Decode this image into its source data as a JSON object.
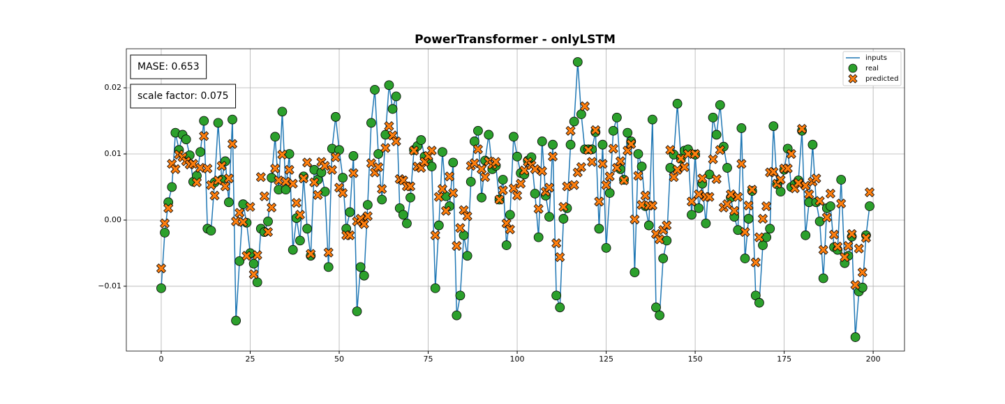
{
  "chart_data": {
    "type": "line-scatter",
    "title": "PowerTransformer - onlyLSTM",
    "annotations": [
      "MASE: 0.653",
      "scale factor: 0.075"
    ],
    "xlim": [
      -9.8,
      208.8
    ],
    "xticks": [
      0,
      25,
      50,
      75,
      100,
      125,
      150,
      175,
      200
    ],
    "ylim": [
      -0.0198,
      0.0259
    ],
    "yticks": [
      {
        "value": -0.01,
        "label": "−0.01"
      },
      {
        "value": 0,
        "label": "0.00"
      },
      0.01,
      0.02
    ],
    "grid": true,
    "legend": "upper right",
    "x": [
      0,
      1,
      2,
      3,
      4,
      5,
      6,
      7,
      8,
      9,
      10,
      11,
      12,
      13,
      14,
      15,
      16,
      17,
      18,
      19,
      20,
      21,
      22,
      23,
      24,
      25,
      26,
      27,
      28,
      29,
      30,
      31,
      32,
      33,
      34,
      35,
      36,
      37,
      38,
      39,
      40,
      41,
      42,
      43,
      44,
      45,
      46,
      47,
      48,
      49,
      50,
      51,
      52,
      53,
      54,
      55,
      56,
      57,
      58,
      59,
      60,
      61,
      62,
      63,
      64,
      65,
      66,
      67,
      68,
      69,
      70,
      71,
      72,
      73,
      74,
      75,
      76,
      77,
      78,
      79,
      80,
      81,
      82,
      83,
      84,
      85,
      86,
      87,
      88,
      89,
      90,
      91,
      92,
      93,
      94,
      95,
      96,
      97,
      98,
      99,
      100,
      101,
      102,
      103,
      104,
      105,
      106,
      107,
      108,
      109,
      110,
      111,
      112,
      113,
      114,
      115,
      116,
      117,
      118,
      119,
      120,
      121,
      122,
      123,
      124,
      125,
      126,
      127,
      128,
      129,
      130,
      131,
      132,
      133,
      134,
      135,
      136,
      137,
      138,
      139,
      140,
      141,
      142,
      143,
      144,
      145,
      146,
      147,
      148,
      149,
      150,
      151,
      152,
      153,
      154,
      155,
      156,
      157,
      158,
      159,
      160,
      161,
      162,
      163,
      164,
      165,
      166,
      167,
      168,
      169,
      170,
      171,
      172,
      173,
      174,
      175,
      176,
      177,
      178,
      179,
      180,
      181,
      182,
      183,
      184,
      185,
      186,
      187,
      188,
      189,
      190,
      191,
      192,
      193,
      194,
      195,
      196,
      197,
      198,
      199
    ],
    "series": [
      {
        "name": "inputs",
        "color": "#1f77b4",
        "marker": "line",
        "values": [
          -0.0103,
          -0.0019,
          0.0027,
          0.005,
          0.0132,
          0.0106,
          0.0129,
          0.0122,
          0.0098,
          0.0058,
          0.0067,
          0.0103,
          0.015,
          -0.0013,
          -0.0016,
          0.0057,
          0.0147,
          0.0061,
          0.0089,
          0.0027,
          0.0152,
          -0.0152,
          -0.0062,
          0.0024,
          -0.0004,
          -0.005,
          -0.0066,
          -0.0094,
          -0.0013,
          -0.0018,
          -0.0002,
          0.0064,
          0.0126,
          0.0046,
          0.0164,
          0.0046,
          0.01,
          -0.0045,
          0.0003,
          -0.0031,
          0.0066,
          -0.0013,
          -0.0054,
          0.0076,
          0.0061,
          0.0072,
          0.0043,
          -0.0071,
          0.0108,
          0.0156,
          0.0106,
          0.0064,
          -0.0013,
          0.0012,
          0.0097,
          -0.0138,
          -0.0071,
          -0.0084,
          0.0023,
          0.0147,
          0.0197,
          0.01,
          0.0031,
          0.0129,
          0.0204,
          0.0168,
          0.0187,
          0.0018,
          0.0008,
          -0.0005,
          0.0034,
          0.0106,
          0.0112,
          0.0121,
          0.0096,
          0.009,
          0.0081,
          -0.0103,
          -0.0008,
          0.0103,
          0.0036,
          0.0021,
          0.0087,
          -0.0144,
          -0.0114,
          -0.0023,
          -0.0054,
          0.0058,
          0.0119,
          0.0135,
          0.0034,
          0.009,
          0.0129,
          0.0077,
          0.0082,
          0.0031,
          0.0061,
          -0.0038,
          0.0008,
          0.0126,
          0.0096,
          0.0071,
          0.0069,
          0.009,
          0.0095,
          0.004,
          -0.0026,
          0.0119,
          0.0037,
          0.0005,
          0.0114,
          -0.0114,
          -0.0132,
          0.0002,
          0.0018,
          0.0114,
          0.0149,
          0.0239,
          0.016,
          0.0107,
          0.0107,
          0.0107,
          0.0133,
          -0.0013,
          0.0114,
          -0.0042,
          0.0041,
          0.0135,
          0.0155,
          0.0077,
          0.0061,
          0.0132,
          0.0119,
          -0.0079,
          0.01,
          0.0081,
          0.0021,
          -0.0008,
          0.0152,
          -0.0132,
          -0.0144,
          -0.0058,
          -0.0031,
          0.0079,
          0.0099,
          0.0176,
          0.0093,
          0.0105,
          0.0107,
          0.0008,
          0.0099,
          0.0018,
          0.0055,
          -0.0005,
          0.0069,
          0.0155,
          0.0129,
          0.0174,
          0.0111,
          0.0079,
          0.0034,
          0.0005,
          -0.0015,
          0.0139,
          -0.0058,
          0.0002,
          0.0044,
          -0.0114,
          -0.0125,
          -0.0038,
          -0.0026,
          -0.0013,
          0.0142,
          0.0054,
          0.0043,
          0.0076,
          0.0108,
          0.005,
          0.0054,
          0.006,
          0.0135,
          -0.0023,
          0.0027,
          0.0114,
          0.0027,
          -0.0002,
          -0.0088,
          0.0018,
          0.0021,
          -0.0041,
          -0.0045,
          0.0061,
          -0.0065,
          -0.0054,
          -0.0025,
          -0.0177,
          -0.0108,
          -0.0102,
          -0.0023,
          0.0021
        ]
      },
      {
        "name": "real",
        "color": "#2ca02c",
        "marker": "circle",
        "values": [
          -0.0103,
          -0.0019,
          0.0027,
          0.005,
          0.0132,
          0.0106,
          0.0129,
          0.0122,
          0.0098,
          0.0058,
          0.0067,
          0.0103,
          0.015,
          -0.0013,
          -0.0016,
          0.0057,
          0.0147,
          0.0061,
          0.0089,
          0.0027,
          0.0152,
          -0.0152,
          -0.0062,
          0.0024,
          -0.0004,
          -0.005,
          -0.0066,
          -0.0094,
          -0.0013,
          -0.0018,
          -0.0002,
          0.0064,
          0.0126,
          0.0046,
          0.0164,
          0.0046,
          0.01,
          -0.0045,
          0.0003,
          -0.0031,
          0.0066,
          -0.0013,
          -0.0054,
          0.0076,
          0.0061,
          0.0072,
          0.0043,
          -0.0071,
          0.0108,
          0.0156,
          0.0106,
          0.0064,
          -0.0013,
          0.0012,
          0.0097,
          -0.0138,
          -0.0071,
          -0.0084,
          0.0023,
          0.0147,
          0.0197,
          0.01,
          0.0031,
          0.0129,
          0.0204,
          0.0168,
          0.0187,
          0.0018,
          0.0008,
          -0.0005,
          0.0034,
          0.0106,
          0.0112,
          0.0121,
          0.0096,
          0.009,
          0.0081,
          -0.0103,
          -0.0008,
          0.0103,
          0.0036,
          0.0021,
          0.0087,
          -0.0144,
          -0.0114,
          -0.0023,
          -0.0054,
          0.0058,
          0.0119,
          0.0135,
          0.0034,
          0.009,
          0.0129,
          0.0077,
          0.0082,
          0.0031,
          0.0061,
          -0.0038,
          0.0008,
          0.0126,
          0.0096,
          0.0071,
          0.0069,
          0.009,
          0.0095,
          0.004,
          -0.0026,
          0.0119,
          0.0037,
          0.0005,
          0.0114,
          -0.0114,
          -0.0132,
          0.0002,
          0.0018,
          0.0114,
          0.0149,
          0.0239,
          0.016,
          0.0107,
          0.0107,
          0.0107,
          0.0133,
          -0.0013,
          0.0114,
          -0.0042,
          0.0041,
          0.0135,
          0.0155,
          0.0077,
          0.0061,
          0.0132,
          0.0119,
          -0.0079,
          0.01,
          0.0081,
          0.0021,
          -0.0008,
          0.0152,
          -0.0132,
          -0.0144,
          -0.0058,
          -0.0031,
          0.0079,
          0.0099,
          0.0176,
          0.0093,
          0.0105,
          0.0107,
          0.0008,
          0.0099,
          0.0018,
          0.0055,
          -0.0005,
          0.0069,
          0.0155,
          0.0129,
          0.0174,
          0.0111,
          0.0079,
          0.0034,
          0.0005,
          -0.0015,
          0.0139,
          -0.0058,
          0.0002,
          0.0044,
          -0.0114,
          -0.0125,
          -0.0038,
          -0.0026,
          -0.0013,
          0.0142,
          0.0054,
          0.0043,
          0.0076,
          0.0108,
          0.005,
          0.0054,
          0.006,
          0.0135,
          -0.0023,
          0.0027,
          0.0114,
          0.0027,
          -0.0002,
          -0.0088,
          0.0018,
          0.0021,
          -0.0041,
          -0.0045,
          0.0061,
          -0.0065,
          -0.0054,
          -0.0025,
          -0.0177,
          -0.0108,
          -0.0102,
          -0.0023,
          0.0021
        ]
      },
      {
        "name": "predicted",
        "color": "#ff7f0e",
        "marker": "x",
        "values": [
          -0.0073,
          -0.0005,
          0.0018,
          0.0085,
          0.0077,
          0.0099,
          0.0095,
          0.0089,
          0.0084,
          0.0085,
          0.0057,
          0.0079,
          0.0127,
          0.0078,
          0.0053,
          0.0037,
          0.006,
          0.0082,
          0.0051,
          0.0063,
          0.0115,
          -0.0002,
          0.0011,
          -0.0003,
          -0.0054,
          0.002,
          -0.0082,
          -0.0053,
          0.0065,
          0.0036,
          -0.0018,
          0.0019,
          0.0078,
          0.006,
          0.0099,
          0.0058,
          0.0076,
          0.0055,
          0.0026,
          0.0008,
          0.0063,
          0.0087,
          -0.0051,
          0.0057,
          0.0038,
          0.0088,
          0.0082,
          -0.0049,
          0.0076,
          0.0095,
          0.0049,
          0.0041,
          -0.0023,
          -0.0023,
          0.0071,
          -0.0002,
          0.0002,
          -0.0006,
          0.0006,
          0.0086,
          0.0072,
          0.008,
          0.0047,
          0.0109,
          0.0142,
          0.0128,
          0.0119,
          0.0062,
          0.006,
          0.0051,
          0.0051,
          0.0105,
          0.0081,
          0.0079,
          0.0088,
          0.0097,
          0.0105,
          -0.0023,
          0.0035,
          0.0047,
          0.0014,
          0.0066,
          0.0041,
          -0.0039,
          -0.0012,
          0.0015,
          0.0006,
          0.0082,
          0.0086,
          0.0107,
          0.0077,
          0.0065,
          0.0089,
          0.0084,
          0.0088,
          0.0031,
          0.0045,
          -0.0005,
          -0.0014,
          0.0048,
          0.0037,
          0.0055,
          0.0075,
          0.0088,
          0.0083,
          0.0077,
          0.0017,
          0.0074,
          0.0043,
          0.0049,
          0.0096,
          -0.0035,
          -0.0056,
          0.002,
          0.0051,
          0.0135,
          0.0053,
          0.0072,
          0.008,
          0.0172,
          0.0106,
          0.0088,
          0.0136,
          0.0028,
          0.0085,
          0.0053,
          0.0066,
          0.0108,
          0.0079,
          0.0089,
          0.006,
          0.0105,
          0.0115,
          0.0001,
          0.0067,
          0.0023,
          0.0037,
          0.0022,
          0.0022,
          -0.0021,
          -0.0029,
          -0.0015,
          -0.0008,
          0.0106,
          0.0065,
          0.0076,
          0.0093,
          0.008,
          0.01,
          0.0028,
          0.01,
          0.0039,
          0.0063,
          0.0035,
          0.0035,
          0.0092,
          0.0062,
          0.0106,
          0.0019,
          0.0024,
          0.0039,
          0.0014,
          0.0035,
          0.0085,
          -0.0018,
          0.0022,
          0.0046,
          -0.0064,
          -0.0026,
          0.0002,
          0.0021,
          0.0072,
          0.0073,
          0.0055,
          0.0061,
          0.0078,
          0.0078,
          0.01,
          0.0048,
          0.0056,
          0.0138,
          0.0052,
          0.0039,
          0.0058,
          0.0063,
          0.0029,
          -0.0045,
          0.0004,
          0.004,
          -0.0022,
          -0.004,
          0.0025,
          -0.0056,
          -0.0039,
          -0.0021,
          -0.0098,
          -0.0043,
          -0.0079,
          -0.0027,
          0.0042
        ]
      }
    ]
  }
}
